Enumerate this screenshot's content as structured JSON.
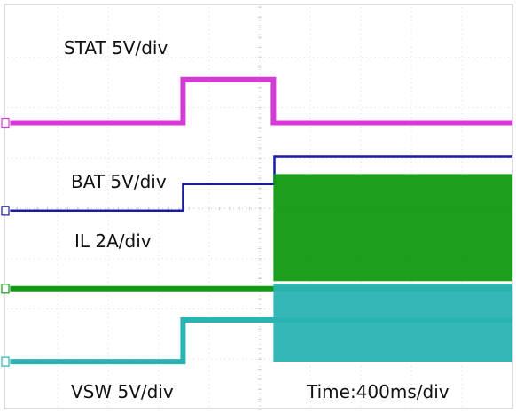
{
  "chart_data": {
    "type": "line",
    "x_unit": "div",
    "xlim": [
      0,
      10
    ],
    "ylim": [
      0,
      8
    ],
    "time_scale": "Time:400ms/div",
    "grid": true,
    "series": [
      {
        "name": "STAT",
        "scale": "5V/div",
        "color": "#d63ad6",
        "marker_y": 5.7,
        "points": [
          [
            0.06,
            5.7
          ],
          [
            3.48,
            5.7
          ],
          [
            3.48,
            6.56
          ],
          [
            5.27,
            6.56
          ],
          [
            5.27,
            5.7
          ],
          [
            10,
            5.7
          ]
        ]
      },
      {
        "name": "BAT",
        "scale": "5V/div",
        "color": "#1a1aaa",
        "marker_y": 3.95,
        "points": [
          [
            0.06,
            3.95
          ],
          [
            3.48,
            3.95
          ],
          [
            3.48,
            4.48
          ],
          [
            5.29,
            4.48
          ],
          [
            5.29,
            5.03
          ],
          [
            10,
            5.03
          ]
        ]
      },
      {
        "name": "IL",
        "scale": "2A/div",
        "color": "#119911",
        "marker_y": 2.4,
        "points": [
          [
            0.06,
            2.4
          ],
          [
            5.27,
            2.4
          ],
          [
            5.27,
            2.4
          ],
          [
            10,
            2.4
          ]
        ],
        "bands": [
          [
            5.27,
            10,
            2.55,
            4.68
          ]
        ]
      },
      {
        "name": "VSW",
        "scale": "5V/div",
        "color": "#2ab3b3",
        "marker_y": 0.95,
        "points": [
          [
            0.06,
            0.95
          ],
          [
            3.48,
            0.95
          ],
          [
            3.48,
            1.78
          ],
          [
            5.27,
            1.78
          ],
          [
            5.27,
            1.78
          ],
          [
            10,
            1.78
          ]
        ],
        "bands": [
          [
            5.27,
            10,
            0.95,
            2.5
          ]
        ]
      }
    ]
  },
  "labels": {
    "stat": "STAT    5V/div",
    "bat": "BAT    5V/div",
    "il": "IL      2A/div",
    "vsw": "VSW    5V/div",
    "time": "Time:400ms/div"
  }
}
